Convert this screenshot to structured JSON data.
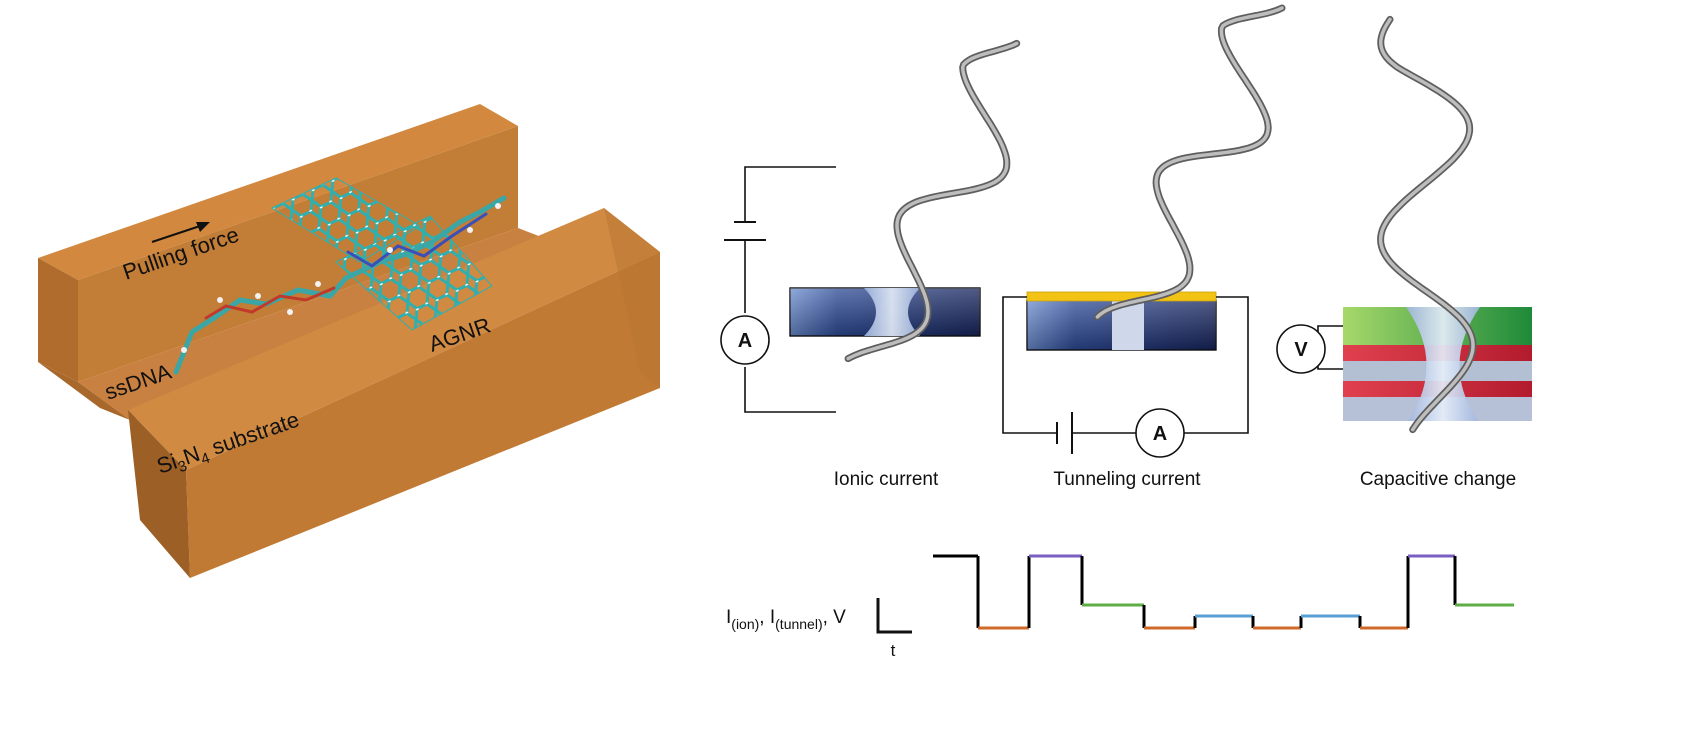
{
  "left_panel": {
    "pulling_force_label": "Pulling force",
    "ssdna_label": "ssDNA",
    "agnr_label": "AGNR",
    "substrate_label": {
      "prefix": "Si",
      "sub1": "3",
      "mid": "N",
      "sub2": "4",
      "suffix": " substrate"
    }
  },
  "right_panel": {
    "methods": [
      {
        "caption": "Ionic current",
        "meter": "A"
      },
      {
        "caption": "Tunneling current",
        "meter": "A"
      },
      {
        "caption": "Capacitive change",
        "meter": "V"
      }
    ],
    "signal_axis": {
      "ylabel_parts": [
        {
          "t": "I",
          "sub": "(ion)"
        },
        {
          "t": ", I",
          "sub": "(tunnel)"
        },
        {
          "t": ", V",
          "sub": ""
        }
      ],
      "xlabel": "t"
    },
    "signal_levels": [
      "high",
      "low",
      "high",
      "mid",
      "low",
      "lowmid",
      "low",
      "lowmid",
      "low",
      "high",
      "mid"
    ],
    "colors": {
      "base_colors": [
        "#e07a34",
        "#7a5ec0",
        "#5fb04a",
        "#4f9ed6"
      ],
      "segment_colors": [
        "#000000",
        "#cf6a2a",
        "#7a5ec0",
        "#5fae45",
        "#cf6a2a",
        "#5a9fd4",
        "#cf6a2a",
        "#5a9fd4",
        "#cf6a2a",
        "#7a5ec0",
        "#5fae45"
      ],
      "substrate": "#c8813f",
      "gold": "#f2c314",
      "membrane": "#1e2f6e"
    }
  }
}
